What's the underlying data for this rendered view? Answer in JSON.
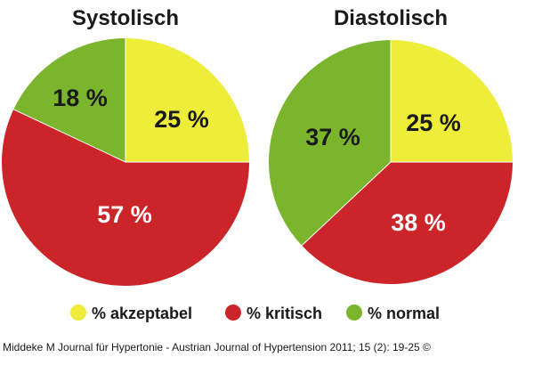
{
  "chart_data": [
    {
      "type": "pie",
      "title": "Systolisch",
      "slices": [
        {
          "category": "% akzeptabel",
          "value": 25,
          "label": "25 %",
          "color": "#eded3a",
          "label_color": "#1a1a1a"
        },
        {
          "category": "% kritisch",
          "value": 57,
          "label": "57 %",
          "color": "#cc2529",
          "label_color": "#ffffff"
        },
        {
          "category": "% normal",
          "value": 18,
          "label": "18 %",
          "color": "#7bb52e",
          "label_color": "#1a1a1a"
        }
      ]
    },
    {
      "type": "pie",
      "title": "Diastolisch",
      "slices": [
        {
          "category": "% akzeptabel",
          "value": 25,
          "label": "25 %",
          "color": "#eded3a",
          "label_color": "#1a1a1a"
        },
        {
          "category": "% kritisch",
          "value": 38,
          "label": "38 %",
          "color": "#cc2529",
          "label_color": "#ffffff"
        },
        {
          "category": "% normal",
          "value": 37,
          "label": "37 %",
          "color": "#7bb52e",
          "label_color": "#1a1a1a"
        }
      ]
    }
  ],
  "legend": [
    {
      "label": "% akzeptabel",
      "color": "#eded3a"
    },
    {
      "label": "% kritisch",
      "color": "#cc2529"
    },
    {
      "label": "% normal",
      "color": "#7bb52e"
    }
  ],
  "citation": "Middeke M Journal für Hypertonie - Austrian Journal of Hypertension 2011; 15 (2): 19-25 ©"
}
